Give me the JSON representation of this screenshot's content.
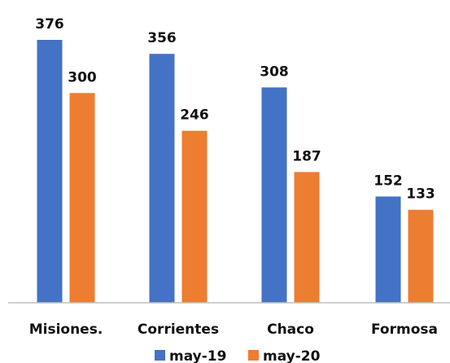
{
  "chart_data": {
    "type": "bar",
    "categories": [
      "Misiones.",
      "Corrientes",
      "Chaco",
      "Formosa"
    ],
    "series": [
      {
        "name": "may-19",
        "values": [
          376,
          356,
          308,
          152
        ],
        "color": "#4472C4"
      },
      {
        "name": "may-20",
        "values": [
          300,
          246,
          187,
          133
        ],
        "color": "#ED7D31"
      }
    ],
    "ylim": [
      0,
      376
    ],
    "grid": false,
    "legend": "bottom",
    "data_labels": true
  }
}
